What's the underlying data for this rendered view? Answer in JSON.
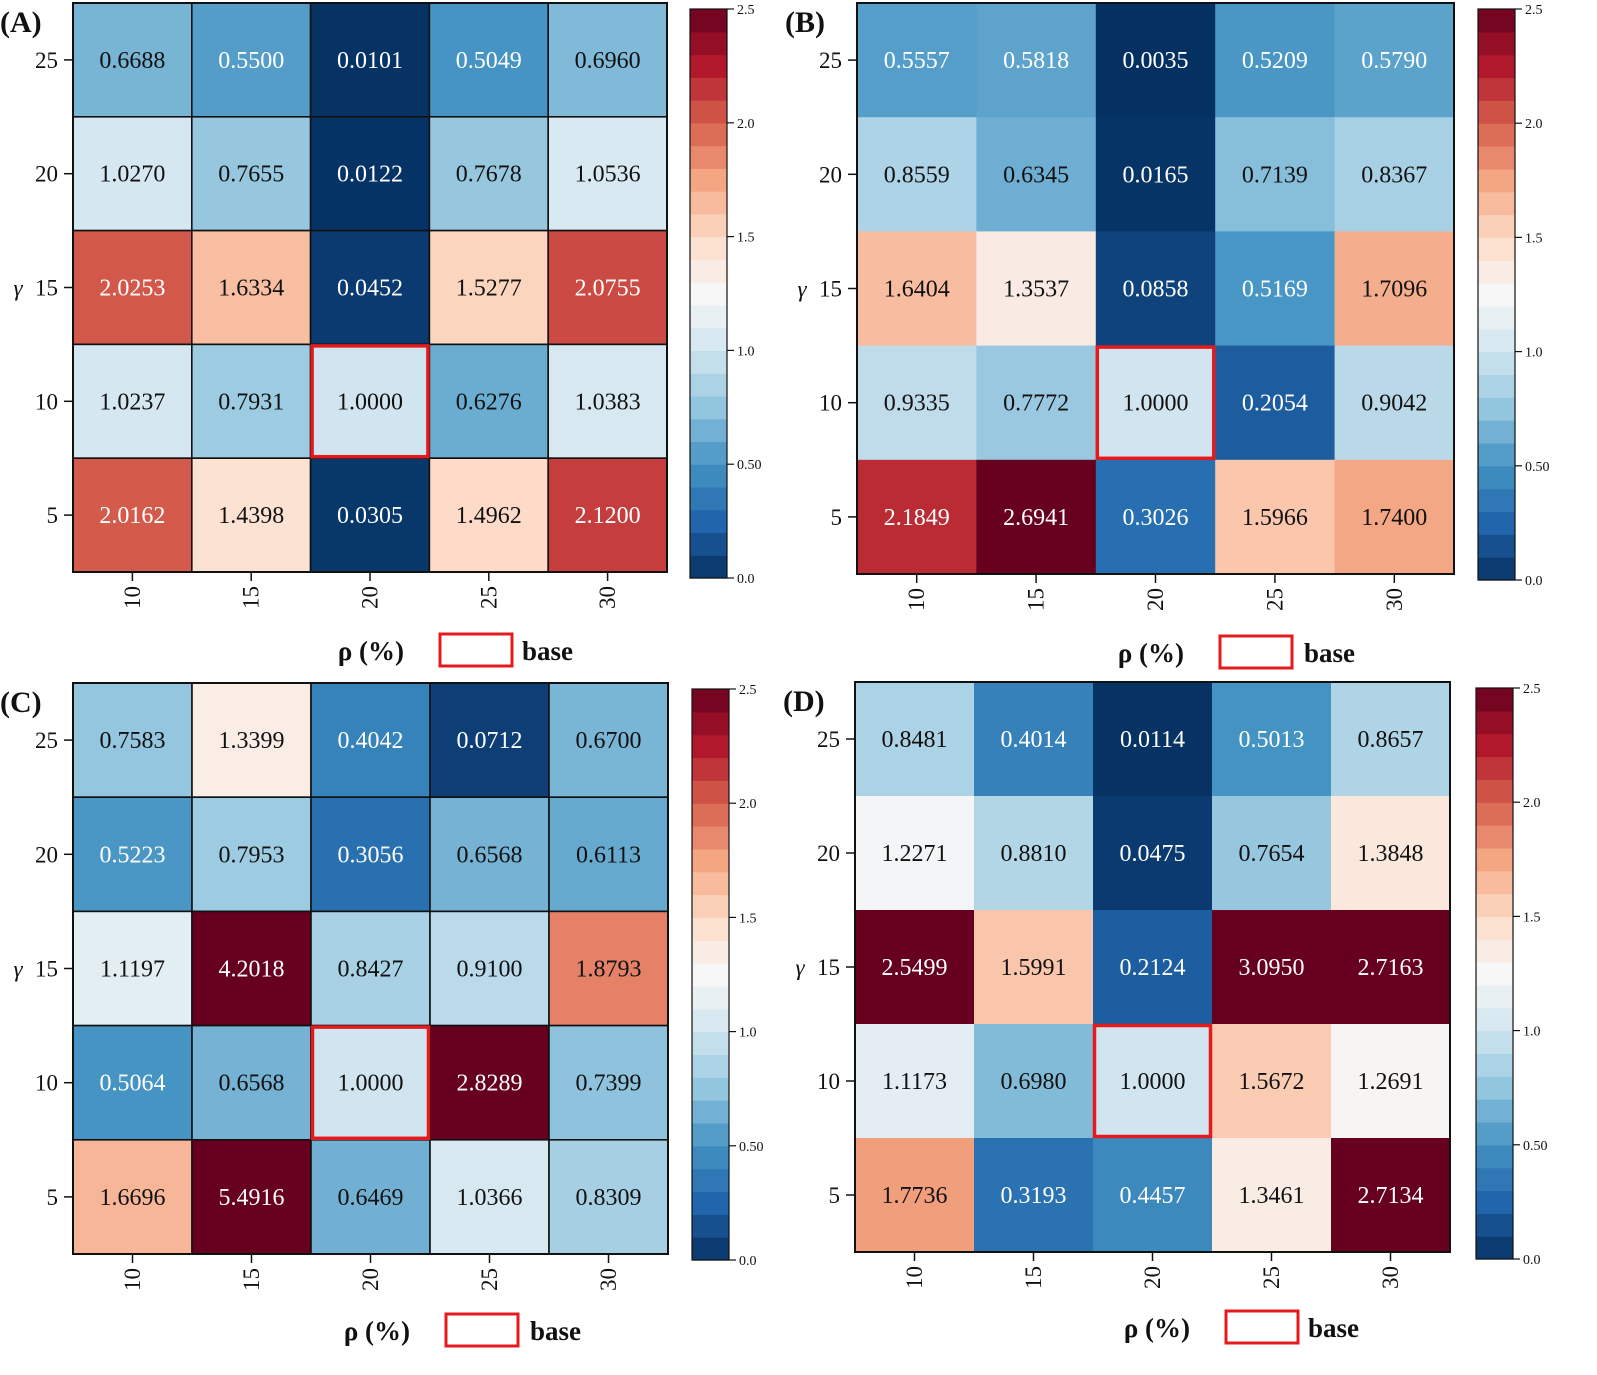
{
  "figure": {
    "base_label": "base",
    "colors": {
      "base_box": "#e41a1c",
      "grid": "#111111"
    },
    "colormap": [
      "#053061",
      "#2166ac",
      "#4393c3",
      "#92c5de",
      "#d1e5f0",
      "#f7f7f7",
      "#fddbc7",
      "#f4a582",
      "#d6604d",
      "#b2182b",
      "#67001f"
    ]
  },
  "chart_data": [
    {
      "type": "heatmap",
      "panel": "(A)",
      "xlabel": "ρ (%)",
      "ylabel": "γ",
      "x_categories": [
        "10",
        "15",
        "20",
        "25",
        "30"
      ],
      "y_categories": [
        "25",
        "20",
        "15",
        "10",
        "5"
      ],
      "values": [
        [
          0.6688,
          0.55,
          0.0101,
          0.5049,
          0.696
        ],
        [
          1.027,
          0.7655,
          0.0122,
          0.7678,
          1.0536
        ],
        [
          2.0253,
          1.6334,
          0.0452,
          1.5277,
          2.0755
        ],
        [
          1.0237,
          0.7931,
          1.0,
          0.6276,
          1.0383
        ],
        [
          2.0162,
          1.4398,
          0.0305,
          1.4962,
          2.12
        ]
      ],
      "labels": [
        [
          "0.6688",
          "0.5500",
          "0.0101",
          "0.5049",
          "0.6960"
        ],
        [
          "1.0270",
          "0.7655",
          "0.0122",
          "0.7678",
          "1.0536"
        ],
        [
          "2.0253",
          "1.6334",
          "0.0452",
          "1.5277",
          "2.0755"
        ],
        [
          "1.0237",
          "0.7931",
          "1.0000",
          "0.6276",
          "1.0383"
        ],
        [
          "2.0162",
          "1.4398",
          "0.0305",
          "1.4962",
          "2.1200"
        ]
      ],
      "base_cell": {
        "x": "20",
        "y": "10"
      },
      "colorbar": {
        "range": [
          0,
          2.5
        ],
        "ticks": [
          "0.0",
          "0.50",
          "1.0",
          "1.5",
          "2.0",
          "2.5"
        ]
      }
    },
    {
      "type": "heatmap",
      "panel": "(B)",
      "xlabel": "ρ (%)",
      "ylabel": "γ",
      "x_categories": [
        "10",
        "15",
        "20",
        "25",
        "30"
      ],
      "y_categories": [
        "25",
        "20",
        "15",
        "10",
        "5"
      ],
      "values": [
        [
          0.5557,
          0.5818,
          0.0035,
          0.5209,
          0.579
        ],
        [
          0.8559,
          0.6345,
          0.0165,
          0.7139,
          0.8367
        ],
        [
          1.6404,
          1.3537,
          0.0858,
          0.5169,
          1.7096
        ],
        [
          0.9335,
          0.7772,
          1.0,
          0.2054,
          0.9042
        ],
        [
          2.1849,
          2.6941,
          0.3026,
          1.5966,
          1.74
        ]
      ],
      "labels": [
        [
          "0.5557",
          "0.5818",
          "0.0035",
          "0.5209",
          "0.5790"
        ],
        [
          "0.8559",
          "0.6345",
          "0.0165",
          "0.7139",
          "0.8367"
        ],
        [
          "1.6404",
          "1.3537",
          "0.0858",
          "0.5169",
          "1.7096"
        ],
        [
          "0.9335",
          "0.7772",
          "1.0000",
          "0.2054",
          "0.9042"
        ],
        [
          "2.1849",
          "2.6941",
          "0.3026",
          "1.5966",
          "1.7400"
        ]
      ],
      "base_cell": {
        "x": "20",
        "y": "10"
      },
      "colorbar": {
        "range": [
          0,
          2.5
        ],
        "ticks": [
          "0.0",
          "0.50",
          "1.0",
          "1.5",
          "2.0",
          "2.5"
        ]
      }
    },
    {
      "type": "heatmap",
      "panel": "(C)",
      "xlabel": "ρ (%)",
      "ylabel": "γ",
      "x_categories": [
        "10",
        "15",
        "20",
        "25",
        "30"
      ],
      "y_categories": [
        "25",
        "20",
        "15",
        "10",
        "5"
      ],
      "values": [
        [
          0.7583,
          1.3399,
          0.4042,
          0.0712,
          0.67
        ],
        [
          0.5223,
          0.7953,
          0.3056,
          0.6568,
          0.6113
        ],
        [
          1.1197,
          4.2018,
          0.8427,
          0.91,
          1.8793
        ],
        [
          0.5064,
          0.6568,
          1.0,
          2.8289,
          0.7399
        ],
        [
          1.6696,
          5.4916,
          0.6469,
          1.0366,
          0.8309
        ]
      ],
      "labels": [
        [
          "0.7583",
          "1.3399",
          "0.4042",
          "0.0712",
          "0.6700"
        ],
        [
          "0.5223",
          "0.7953",
          "0.3056",
          "0.6568",
          "0.6113"
        ],
        [
          "1.1197",
          "4.2018",
          "0.8427",
          "0.9100",
          "1.8793"
        ],
        [
          "0.5064",
          "0.6568",
          "1.0000",
          "2.8289",
          "0.7399"
        ],
        [
          "1.6696",
          "5.4916",
          "0.6469",
          "1.0366",
          "0.8309"
        ]
      ],
      "base_cell": {
        "x": "20",
        "y": "10"
      },
      "colorbar": {
        "range": [
          0,
          2.5
        ],
        "ticks": [
          "0.0",
          "0.50",
          "1.0",
          "1.5",
          "2.0",
          "2.5"
        ]
      }
    },
    {
      "type": "heatmap",
      "panel": "(D)",
      "xlabel": "ρ (%)",
      "ylabel": "γ",
      "x_categories": [
        "10",
        "15",
        "20",
        "25",
        "30"
      ],
      "y_categories": [
        "25",
        "20",
        "15",
        "10",
        "5"
      ],
      "values": [
        [
          0.8481,
          0.4014,
          0.0114,
          0.5013,
          0.8657
        ],
        [
          1.2271,
          0.881,
          0.0475,
          0.7654,
          1.3848
        ],
        [
          2.5499,
          1.5991,
          0.2124,
          3.095,
          2.7163
        ],
        [
          1.1173,
          0.698,
          1.0,
          1.5672,
          1.2691
        ],
        [
          1.7736,
          0.3193,
          0.4457,
          1.3461,
          2.7134
        ]
      ],
      "labels": [
        [
          "0.8481",
          "0.4014",
          "0.0114",
          "0.5013",
          "0.8657"
        ],
        [
          "1.2271",
          "0.8810",
          "0.0475",
          "0.7654",
          "1.3848"
        ],
        [
          "2.5499",
          "1.5991",
          "0.2124",
          "3.0950",
          "2.7163"
        ],
        [
          "1.1173",
          "0.6980",
          "1.0000",
          "1.5672",
          "1.2691"
        ],
        [
          "1.7736",
          "0.3193",
          "0.4457",
          "1.3461",
          "2.7134"
        ]
      ],
      "base_cell": {
        "x": "20",
        "y": "10"
      },
      "colorbar": {
        "range": [
          0,
          2.5
        ],
        "ticks": [
          "0.0",
          "0.50",
          "1.0",
          "1.5",
          "2.0",
          "2.5"
        ]
      }
    }
  ]
}
